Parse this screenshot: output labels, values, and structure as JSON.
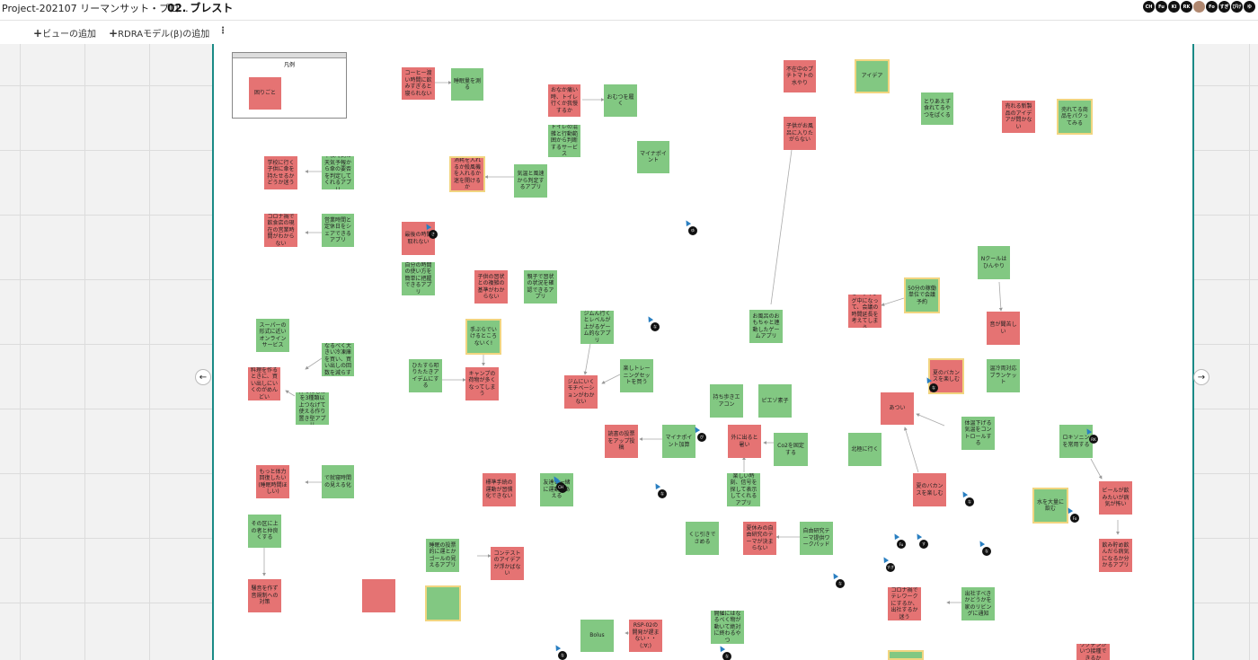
{
  "header": {
    "project": "Project-202107 リーマンサット・プロ...",
    "page_title": "02. ブレスト",
    "avatars": [
      "CH",
      "Fu",
      "Ki",
      "RK",
      "",
      "Fo",
      "すぎ",
      "ぴけ",
      "ゆ"
    ]
  },
  "toolbar": {
    "add_view": "ビューの追加",
    "add_rdra": "RDRAモデル(β)の追加",
    "more": "⋮"
  },
  "nav": {
    "prev": "←",
    "next": "→"
  },
  "legend": {
    "title": "凡例",
    "sample": "困りごと"
  },
  "colors": {
    "green": "#82c882",
    "red": "#e57373",
    "accent": "#1a8a86",
    "highlight": "#f1d580"
  },
  "stickies": [
    {
      "t": "コーヒー渡い時間に飲みすぎると寝られない",
      "c": "r"
    },
    {
      "t": "睡眠量を測る",
      "c": "g"
    },
    {
      "t": "おなか痛い時、トイレ行くか我慢するか",
      "c": "r"
    },
    {
      "t": "おむつを履く",
      "c": "g"
    },
    {
      "t": "トイレの混雑と行動範囲から判断するサービス",
      "c": "g"
    },
    {
      "t": "マイナポイント",
      "c": "g"
    },
    {
      "t": "不在中のプチトマトの水やり",
      "c": "r"
    },
    {
      "t": "アイデア",
      "c": "g",
      "y": true
    },
    {
      "t": "とりあえず食れてるやつをぱくる",
      "c": "g"
    },
    {
      "t": "売れる新製品のアイデアが問かない",
      "c": "r"
    },
    {
      "t": "売れてる商品をパクってみる",
      "c": "g",
      "y": true
    },
    {
      "t": "子供がお風呂に入りたがらない",
      "c": "r"
    },
    {
      "t": "学校に行く子供に傘を持たせるかどうか迷う",
      "c": "r"
    },
    {
      "t": "下校時刻の天気予報から傘の要否を判定してくれるアプリ",
      "c": "g"
    },
    {
      "t": "消耗を入れるか殺風機を入れるか迷を開けるか",
      "c": "r",
      "y": true
    },
    {
      "t": "気温と風速から判定するアプリ",
      "c": "g"
    },
    {
      "t": "コロナ禍で飲食店の現在の営業時間がわからない",
      "c": "r"
    },
    {
      "t": "営業時間と定休日をシェアできるアプリ",
      "c": "g"
    },
    {
      "t": "最後の時間取れない",
      "c": "r"
    },
    {
      "t": "自分の時間の使い方を簡単に把握できるアプリ",
      "c": "g"
    },
    {
      "t": "子供の習状との複雑の基準がわからない",
      "c": "r"
    },
    {
      "t": "親子で習状の状況を確認できるアプリ",
      "c": "g"
    },
    {
      "t": "Nクールはひんやり",
      "c": "g"
    },
    {
      "t": "50分の稼働単位で会議予約",
      "c": "g",
      "y": true
    },
    {
      "t": "ミーティング中になって、会議の時間延長を考えてしまう",
      "c": "r"
    },
    {
      "t": "お風呂のおもちゃと連動したゲームアプリ",
      "c": "g"
    },
    {
      "t": "音が聞苦しい",
      "c": "r"
    },
    {
      "t": "スーパーの形式に近いオンラインサービス",
      "c": "g"
    },
    {
      "t": "なるべく大きい冷凍庫を買い、買い出しの回数を減らす",
      "c": "g"
    },
    {
      "t": "料理を作るときに、買い出しにいくのがめんどい",
      "c": "r"
    },
    {
      "t": "作ったものを3種類以上つなげて使える作り置き型アプリ",
      "c": "g"
    },
    {
      "t": "手ぶらでいけるところないく!",
      "c": "g",
      "y": true
    },
    {
      "t": "ジムん行くとレベルが上がるゲーム的なアプリ",
      "c": "g"
    },
    {
      "t": "ひたすら叩りたたきアイデムにする",
      "c": "g"
    },
    {
      "t": "キャンプの荷物が多くなってしまう",
      "c": "r"
    },
    {
      "t": "楽しトレーニングセットを買う",
      "c": "g"
    },
    {
      "t": "ジムにいくモチベーションがわかない",
      "c": "r"
    },
    {
      "t": "夏のバカンスを楽しむ",
      "c": "r",
      "y": true
    },
    {
      "t": "温冷両対応ブランケット",
      "c": "g"
    },
    {
      "t": "持ち歩きエアコン",
      "c": "g"
    },
    {
      "t": "ピエゾ素子",
      "c": "g"
    },
    {
      "t": "あつい",
      "c": "r"
    },
    {
      "t": "体温下げる気温をコントロールする",
      "c": "g"
    },
    {
      "t": "北極に行く",
      "c": "g"
    },
    {
      "t": "ロキソニンを常用する",
      "c": "g"
    },
    {
      "t": "読書の投票をアップ投稿",
      "c": "r"
    },
    {
      "t": "マイナポイント加算",
      "c": "g"
    },
    {
      "t": "外に出ると暑い",
      "c": "r"
    },
    {
      "t": "Co2を固定する",
      "c": "g"
    },
    {
      "t": "ビールが飲みたいが病気が怖い",
      "c": "r"
    },
    {
      "t": "もっと体力回復したい(睡眠時間ほしい)",
      "c": "r"
    },
    {
      "t": "で就寝時間の見える化",
      "c": "g"
    },
    {
      "t": "標準手続の運動が習慣化できない",
      "c": "r"
    },
    {
      "t": "友達と一緒に運動しあえる",
      "c": "g"
    },
    {
      "t": "楽しい時刻、信号を探して表示してくれるアプリ",
      "c": "g"
    },
    {
      "t": "夏のバカンスを楽しむ",
      "c": "r"
    },
    {
      "t": "水を大量に飲む",
      "c": "g",
      "y": true
    },
    {
      "t": "その区に上の者と仲良くする",
      "c": "g"
    },
    {
      "t": "くじ引きでさめる",
      "c": "g"
    },
    {
      "t": "夏休みの自由研究のテーマが決まらない",
      "c": "r"
    },
    {
      "t": "自由研究テーマ提供ワークパッド",
      "c": "g"
    },
    {
      "t": "飲み貯め飲んだら病気になるか分かるアプリ",
      "c": "r"
    },
    {
      "t": "睡眠の投票的に運とかゴールの見えるアプリ",
      "c": "g"
    },
    {
      "t": "コンテストのアイデアが浮かばない",
      "c": "r"
    },
    {
      "t": "騒音を作ず音規制への対策",
      "c": "r"
    },
    {
      "t": "コロナ禍でテレワークにするか、出社するか迷う",
      "c": "r"
    },
    {
      "t": "出社すべきかどうかを家のリビングに通知",
      "c": "g"
    },
    {
      "t": "Bolus",
      "c": "g"
    },
    {
      "t": "RSP-02の開発が遅まない・・(;∀;)",
      "c": "r"
    },
    {
      "t": "開催にはなるべく物が動いて絶対に終わるやつ",
      "c": "g"
    },
    {
      "t": "ワクチンがいつ接種できるか",
      "c": "r"
    },
    {
      "t": "",
      "c": "r"
    },
    {
      "t": "",
      "c": "g",
      "y": true
    },
    {
      "t": "",
      "c": "g",
      "y": true
    }
  ],
  "cursors": [
    "ゆ",
    "な",
    "さ",
    "ぴ",
    "な",
    "す",
    "な",
    "Fu",
    "す",
    "RK",
    "すぎ",
    "な",
    "な",
    "Fo",
    "な",
    "CH",
    "な",
    "な"
  ]
}
